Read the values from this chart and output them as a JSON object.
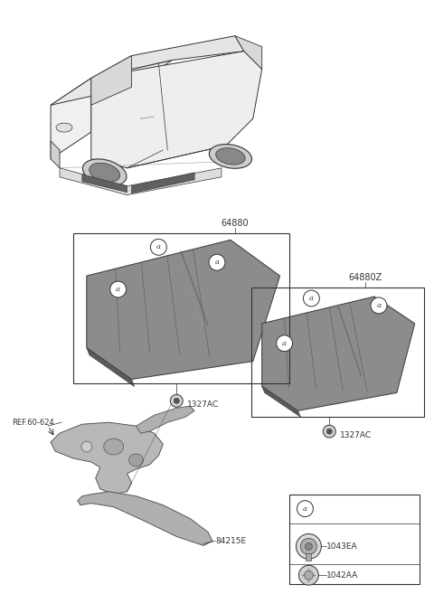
{
  "bg_color": "#ffffff",
  "line_color": "#333333",
  "part_color": "#8c8c8c",
  "part_edge": "#444444",
  "light_part": "#aaaaaa",
  "label_64880": "64880",
  "label_64880Z": "64880Z",
  "label_1327AC_1": "1327AC",
  "label_1327AC_2": "1327AC",
  "label_84215E": "84215E",
  "label_ref": "REF.60-624",
  "label_1043EA": "1043EA",
  "label_1042AA": "1042AA"
}
